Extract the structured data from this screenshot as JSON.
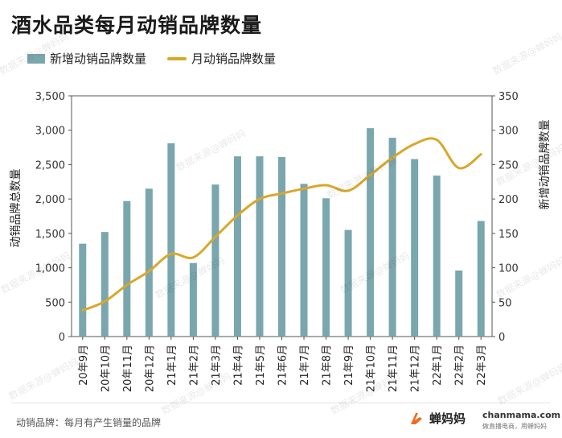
{
  "title": "酒水品类每月动销品牌数量",
  "legend": {
    "bar_label": "新增动销品牌数量",
    "line_label": "月动销品牌数量"
  },
  "footnote": "动销品牌：每月有产生销量的品牌",
  "brand": {
    "name": "蝉妈妈",
    "site": "chanmama.com",
    "slogan": "做直播电商，用蝉妈妈"
  },
  "watermark": {
    "text": "数据来源@蝉妈妈"
  },
  "colors": {
    "bar": "#7aa6ad",
    "line": "#d9a82a",
    "brand": "#f26a1b"
  },
  "chart_data": {
    "type": "bar",
    "categories": [
      "20年9月",
      "20年10月",
      "20年11月",
      "20年12月",
      "21年1月",
      "21年2月",
      "21年3月",
      "21年4月",
      "21年5月",
      "21年6月",
      "21年7月",
      "21年8月",
      "21年9月",
      "21年10月",
      "21年11月",
      "21年12月",
      "22年1月",
      "22年2月",
      "22年3月"
    ],
    "series": [
      {
        "name": "新增动销品牌数量",
        "type": "bar",
        "axis": "right",
        "values": [
          135,
          152,
          197,
          215,
          281,
          107,
          221,
          262,
          262,
          261,
          222,
          201,
          155,
          303,
          289,
          258,
          234,
          96,
          168
        ]
      },
      {
        "name": "月动销品牌数量",
        "type": "line",
        "axis": "left",
        "values": [
          380,
          510,
          750,
          950,
          1200,
          1150,
          1450,
          1760,
          2000,
          2080,
          2150,
          2200,
          2120,
          2350,
          2600,
          2800,
          2860,
          2450,
          2650
        ]
      }
    ],
    "ylabel": "动销品牌总数量",
    "y2label": "新增动销品牌数量",
    "ylim": [
      0,
      3500
    ],
    "y2lim": [
      0,
      350
    ],
    "yticks": [
      "0",
      "500",
      "1,000",
      "1,500",
      "2,000",
      "2,500",
      "3,000",
      "3,500"
    ],
    "y2ticks": [
      "0",
      "50",
      "100",
      "150",
      "200",
      "250",
      "300",
      "350"
    ],
    "grid": false,
    "legend_position": "top-left"
  }
}
